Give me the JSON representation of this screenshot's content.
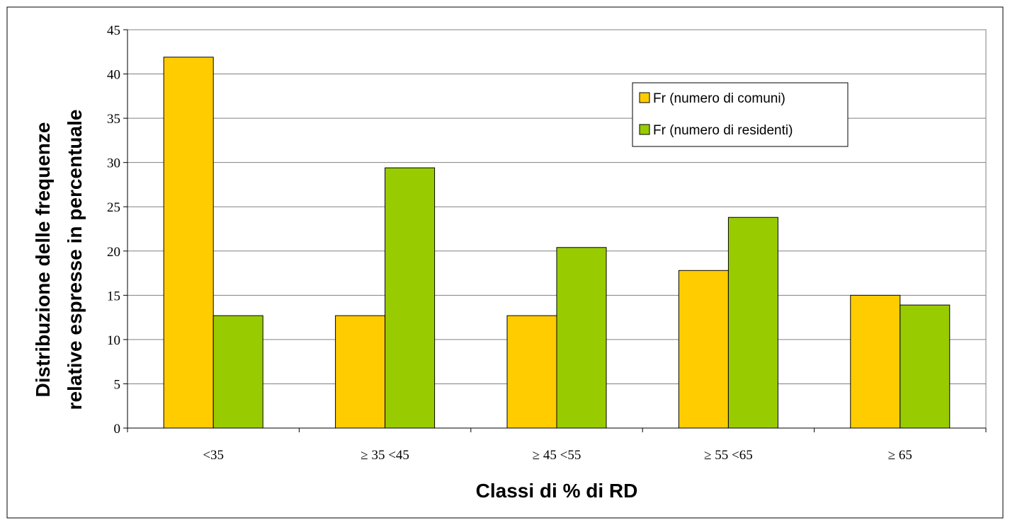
{
  "chart_data": {
    "type": "bar",
    "title": "",
    "xlabel": "Classi di % di RD",
    "ylabel": [
      "Distribuzione delle frequenze",
      "relative espresse in percentuale"
    ],
    "categories": [
      "<35",
      "≥ 35 <45",
      "≥ 45 <55",
      "≥ 55 <65",
      "≥ 65"
    ],
    "series": [
      {
        "name": "Fr (numero di comuni)",
        "color": "#FFCC00",
        "values": [
          41.9,
          12.7,
          12.7,
          17.8,
          15.0
        ]
      },
      {
        "name": "Fr (numero di residenti)",
        "color": "#99CC00",
        "values": [
          12.7,
          29.4,
          20.4,
          23.8,
          13.9
        ]
      }
    ],
    "ylim": [
      0,
      45
    ],
    "yticks": [
      0,
      5,
      10,
      15,
      20,
      25,
      30,
      35,
      40,
      45
    ],
    "grid": true,
    "legend_position": "top-right"
  }
}
